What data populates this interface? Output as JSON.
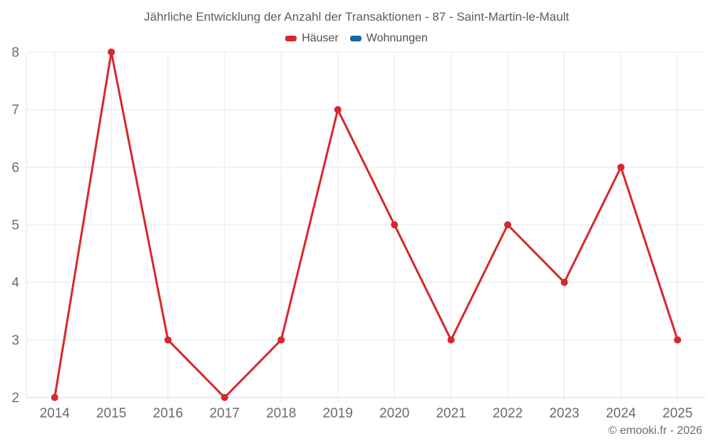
{
  "title": "Jährliche Entwicklung der Anzahl der Transaktionen - 87 - Saint-Martin-le-Mault",
  "legend": {
    "items": [
      {
        "label": "Häuser",
        "color": "#d5282c"
      },
      {
        "label": "Wohnungen",
        "color": "#14699e"
      }
    ]
  },
  "footer": {
    "copyright": "© emooki.fr - 2026"
  },
  "colors": {
    "background": "#ffffff",
    "grid": "#e9e9e9",
    "axis": "#d9d9d9",
    "axis_label": "#6b6b6b",
    "title_text": "#5c5c5c",
    "legend_text": "#515151",
    "copyright_text": "#6b6b6b"
  },
  "chart_data": {
    "type": "line",
    "title": "Jährliche Entwicklung der Anzahl der Transaktionen - 87 - Saint-Martin-le-Mault",
    "categories": [
      "2014",
      "2015",
      "2016",
      "2017",
      "2018",
      "2019",
      "2020",
      "2021",
      "2022",
      "2023",
      "2024",
      "2025"
    ],
    "series": [
      {
        "name": "Häuser",
        "color": "#d5282c",
        "values": [
          2,
          8,
          3,
          2,
          3,
          7,
          5,
          3,
          5,
          4,
          6,
          3
        ]
      },
      {
        "name": "Wohnungen",
        "color": "#14699e",
        "values": []
      }
    ],
    "xlabel": "",
    "ylabel": "",
    "ylim": [
      2,
      8
    ],
    "yticks": [
      2,
      3,
      4,
      5,
      6,
      7,
      8
    ],
    "grid": true,
    "legend_position": "top",
    "marker": "circle",
    "marker_radius": 5,
    "line_width": 3
  }
}
